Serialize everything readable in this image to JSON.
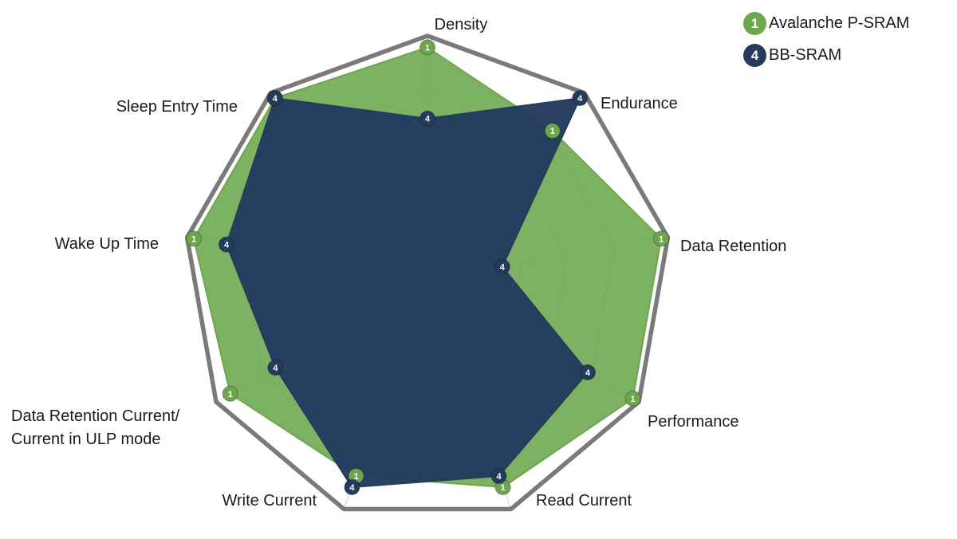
{
  "legend": {
    "items": [
      {
        "marker": "1",
        "label": "Avalanche P-SRAM"
      },
      {
        "marker": "4",
        "label": "BB-SRAM"
      }
    ]
  },
  "colors": {
    "avalanche_green": "#6CA74D",
    "bb_sram_navy": "#243B5E",
    "outer_ring_gray": "#7A7A7A",
    "gridline_gray": "#CFCFCF",
    "label_text": "#1A1A1A"
  },
  "chart_data": {
    "type": "radar",
    "categories": [
      "Density",
      "Endurance",
      "Data Retention",
      "Performance",
      "Read Current",
      "Write Current",
      "Data Retention Current/Current in ULP mode",
      "Wake Up Time",
      "Sleep Entry Time"
    ],
    "series": [
      {
        "name": "Avalanche P-SRAM",
        "marker_label": "1",
        "color": "#6CA74D",
        "values": [
          4.9,
          4.1,
          5.0,
          5.0,
          4.65,
          4.4,
          4.8,
          5.0,
          5.0
        ]
      },
      {
        "name": "BB-SRAM",
        "marker_label": "4",
        "color": "#243B5E",
        "values": [
          3.4,
          5.0,
          1.6,
          3.9,
          4.4,
          4.65,
          3.7,
          4.3,
          5.0
        ]
      }
    ],
    "scale": {
      "min": 0,
      "max": 5,
      "grid_levels": 5
    },
    "grid": "on",
    "legend_position": "top-right"
  }
}
